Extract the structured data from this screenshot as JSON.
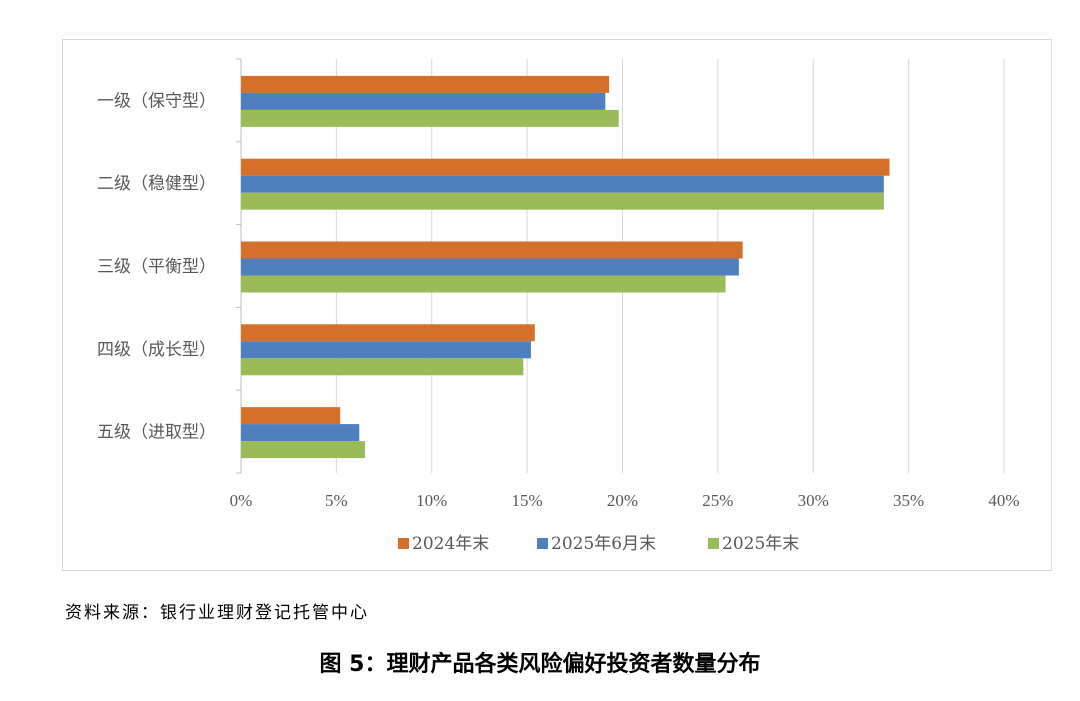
{
  "chart_data": {
    "type": "bar",
    "orientation": "horizontal",
    "categories": [
      "一级（保守型）",
      "二级（稳健型）",
      "三级（平衡型）",
      "四级（成长型）",
      "五级（进取型）"
    ],
    "series": [
      {
        "name": "2024年末",
        "color": "#D4702A",
        "values": [
          19.3,
          34.0,
          26.3,
          15.4,
          5.2
        ]
      },
      {
        "name": "2025年6月末",
        "color": "#4F7FBD",
        "values": [
          19.1,
          33.7,
          26.1,
          15.2,
          6.2
        ]
      },
      {
        "name": "2025年末",
        "color": "#9BBB59",
        "values": [
          19.8,
          33.7,
          25.4,
          14.8,
          6.5
        ]
      }
    ],
    "xlim": [
      0,
      40
    ],
    "xticks": [
      "0%",
      "5%",
      "10%",
      "15%",
      "20%",
      "25%",
      "30%",
      "35%",
      "40%"
    ],
    "grid": true,
    "legend": "bottom"
  },
  "source": "资料来源：银行业理财登记托管中心",
  "caption": "图 5：理财产品各类风险偏好投资者数量分布"
}
